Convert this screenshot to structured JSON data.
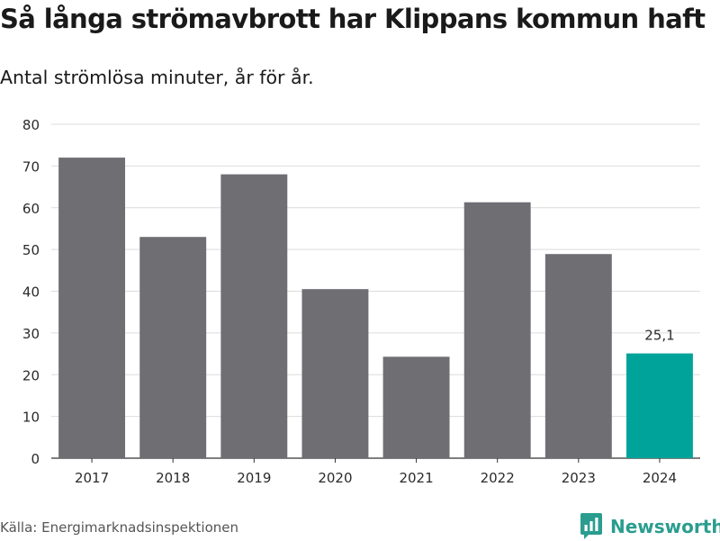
{
  "header": {
    "title": "Så långa strömavbrott har Klippans kommun haft",
    "subtitle": "Antal strömlösa minuter, år för år."
  },
  "footer": {
    "source": "Källa: Energimarknadsinspektionen",
    "brand": "Newsworthy",
    "brand_icon": "newsworthy-logo-icon"
  },
  "colors": {
    "bar": "#6e6e73",
    "highlight": "#00a39a",
    "grid": "#dcdcdc",
    "axis": "#333333",
    "tick_text": "#2b2b2b",
    "brand": "#2a9d8f"
  },
  "chart_data": {
    "type": "bar",
    "title": "Så långa strömavbrott har Klippans kommun haft",
    "subtitle": "Antal strömlösa minuter, år för år.",
    "xlabel": "",
    "ylabel": "",
    "categories": [
      "2017",
      "2018",
      "2019",
      "2020",
      "2021",
      "2022",
      "2023",
      "2024"
    ],
    "values": [
      72,
      53,
      68,
      40.5,
      24.3,
      61.3,
      48.9,
      25.1
    ],
    "highlight_index": 7,
    "data_labels": [
      {
        "index": 7,
        "text": "25,1"
      }
    ],
    "ylim": [
      0,
      80
    ],
    "yticks": [
      0,
      10,
      20,
      30,
      40,
      50,
      60,
      70,
      80
    ],
    "grid": true
  }
}
